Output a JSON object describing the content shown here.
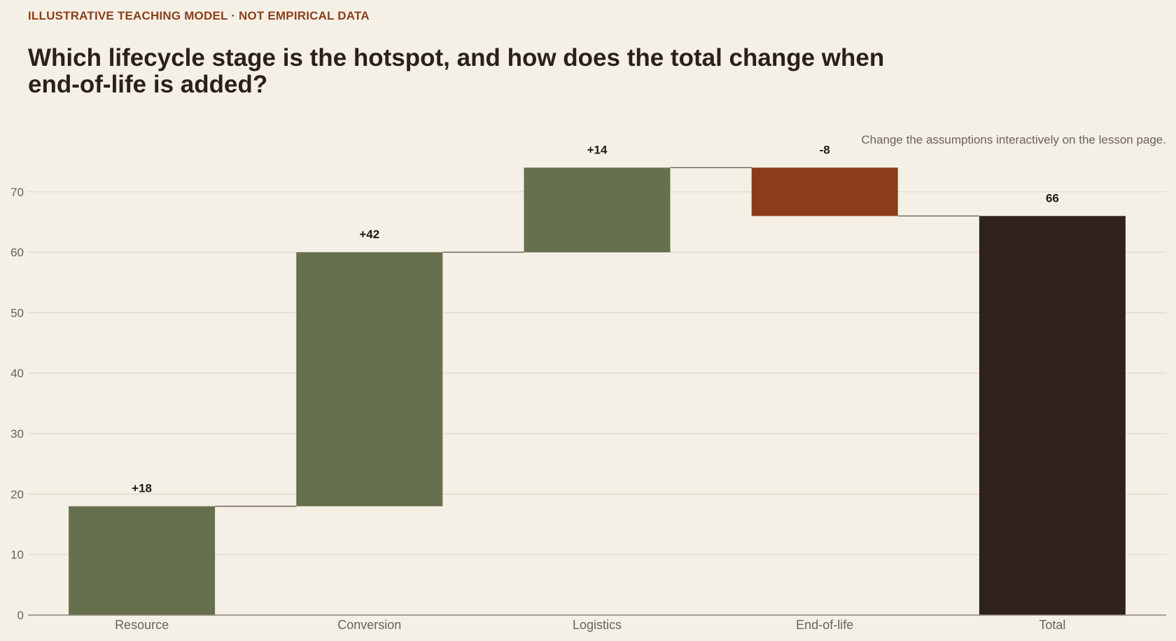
{
  "header": {
    "eyebrow": "ILLUSTRATIVE TEACHING MODEL · NOT EMPIRICAL DATA",
    "title": "Which lifecycle stage is the hotspot, and how does the total change when end-of-life is added?",
    "note": "Change the assumptions interactively on the lesson page."
  },
  "colors": {
    "positive": "#67704d",
    "negative": "#8a3c1b",
    "total": "#2e221b",
    "grid": "#ddd6ca",
    "connector": "#6b5f55",
    "axis": "#8c8378"
  },
  "chart_data": {
    "type": "bar",
    "subtype": "waterfall",
    "categories": [
      "Resource",
      "Conversion",
      "Logistics",
      "End-of-life",
      "Total"
    ],
    "deltas": [
      18,
      42,
      14,
      -8,
      66
    ],
    "is_total": [
      false,
      false,
      false,
      false,
      true
    ],
    "data_labels": [
      "+18",
      "+42",
      "+14",
      "-8",
      "66"
    ],
    "yticks": [
      0,
      10,
      20,
      30,
      40,
      50,
      60,
      70
    ],
    "ylim": [
      0,
      76
    ],
    "grid": true
  }
}
